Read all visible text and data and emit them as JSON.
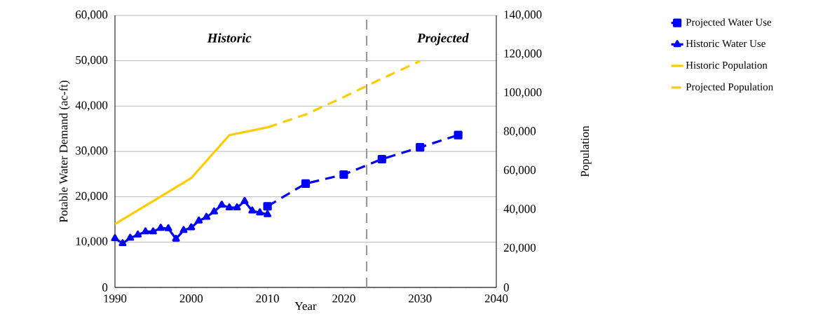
{
  "chart_data": {
    "type": "line",
    "xlabel": "Year",
    "ylabel": "Potable Water Demand (ac-ft)",
    "y2label": "Population",
    "xlim": [
      1990,
      2040
    ],
    "xticks": [
      1990,
      2000,
      2010,
      2020,
      2030,
      2040
    ],
    "ylim": [
      0,
      60000
    ],
    "yticks": [
      0,
      {
        "value": 10000,
        "label": "10,000"
      },
      {
        "value": 20000,
        "label": "20,000"
      },
      {
        "value": 30000,
        "label": "30,000"
      },
      {
        "value": 40000,
        "label": "40,000"
      },
      {
        "value": 50000,
        "label": "50,000"
      },
      {
        "value": 60000,
        "label": "60,000"
      }
    ],
    "y2lim": [
      0,
      140000
    ],
    "y2ticks": [
      0,
      {
        "value": 20000,
        "label": "20,000"
      },
      {
        "value": 40000,
        "label": "40,000"
      },
      {
        "value": 60000,
        "label": "60,000"
      },
      {
        "value": 80000,
        "label": "80,000"
      },
      {
        "value": 100000,
        "label": "100,000"
      },
      {
        "value": 120000,
        "label": "120,000"
      },
      {
        "value": 140000,
        "label": "140,000"
      }
    ],
    "grid": "y",
    "legend": "right",
    "series": [
      {
        "name": "Projected Water Use",
        "color": "#0000ff",
        "marker": "square",
        "line_style": "dashed",
        "x": [
          2010,
          2015,
          2020,
          2025,
          2030,
          2035
        ],
        "values": [
          17900,
          22900,
          24900,
          28300,
          30900,
          33600
        ]
      },
      {
        "name": "Historic Water Use",
        "color": "#0000ff",
        "marker": "triangle",
        "line_style": "solid",
        "x": [
          1990,
          1991,
          1992,
          1993,
          1994,
          1995,
          1996,
          1997,
          1998,
          1999,
          2000,
          2001,
          2002,
          2003,
          2004,
          2005,
          2006,
          2007,
          2008,
          2009,
          2010
        ],
        "values": [
          10800,
          9700,
          10900,
          11600,
          12300,
          12300,
          13100,
          13000,
          10700,
          12600,
          13200,
          14700,
          15500,
          16700,
          18200,
          17600,
          17600,
          19000,
          16900,
          16500,
          16100
        ]
      },
      {
        "name": "Historic Population",
        "color": "#ffcc00",
        "marker": "none",
        "line_style": "solid",
        "axis": "y2",
        "x": [
          1990,
          2000,
          2005,
          2010
        ],
        "values": [
          32600,
          56300,
          78400,
          82400
        ]
      },
      {
        "name": "Projected Population",
        "color": "#ffcc00",
        "marker": "none",
        "line_style": "dashed",
        "axis": "y2",
        "x": [
          2010,
          2015,
          2020,
          2025,
          2030
        ],
        "values": [
          82400,
          89000,
          98000,
          107500,
          116500
        ]
      }
    ],
    "ref_lines": [
      {
        "axis": "x",
        "value": 2023,
        "color": "#999999",
        "line_style": "dashed"
      }
    ],
    "annotations": [
      "Historic",
      "Projected"
    ]
  }
}
